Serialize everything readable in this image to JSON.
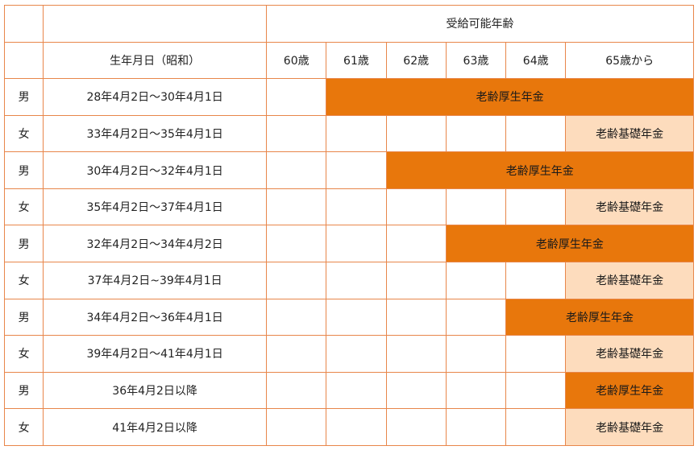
{
  "header": {
    "group_label": "受給可能年齢",
    "birthdate_label": "生年月日（昭和）",
    "ages": [
      "60歳",
      "61歳",
      "62歳",
      "63歳",
      "64歳",
      "65歳から"
    ]
  },
  "pension_types": {
    "kosei": "老齢厚生年金",
    "kiso": "老齢基礎年金"
  },
  "colors": {
    "border": "#e8864a",
    "kosei_fill": "#e8770c",
    "kiso_fill": "#fddcbd"
  },
  "rows": [
    {
      "gender": "男",
      "birthdate": "28年4月2日〜30年4月1日",
      "pension": "老齢厚生年金",
      "start_age": 61
    },
    {
      "gender": "女",
      "birthdate": "33年4月2日〜35年4月1日",
      "pension": "老齢基礎年金",
      "start_age": 65
    },
    {
      "gender": "男",
      "birthdate": "30年4月2日〜32年4月1日",
      "pension": "老齢厚生年金",
      "start_age": 62
    },
    {
      "gender": "女",
      "birthdate": "35年4月2日〜37年4月1日",
      "pension": "老齢基礎年金",
      "start_age": 65
    },
    {
      "gender": "男",
      "birthdate": "32年4月2日〜34年4月2日",
      "pension": "老齢厚生年金",
      "start_age": 63
    },
    {
      "gender": "女",
      "birthdate": "37年4月2日~39年4月1日",
      "pension": "老齢基礎年金",
      "start_age": 65
    },
    {
      "gender": "男",
      "birthdate": "34年4月2日〜36年4月1日",
      "pension": "老齢厚生年金",
      "start_age": 64
    },
    {
      "gender": "女",
      "birthdate": "39年4月2日〜41年4月1日",
      "pension": "老齢基礎年金",
      "start_age": 65
    },
    {
      "gender": "男",
      "birthdate": "36年4月2日以降",
      "pension": "老齢厚生年金",
      "start_age": 65
    },
    {
      "gender": "女",
      "birthdate": "41年4月2日以降",
      "pension": "老齢基礎年金",
      "start_age": 65
    }
  ]
}
